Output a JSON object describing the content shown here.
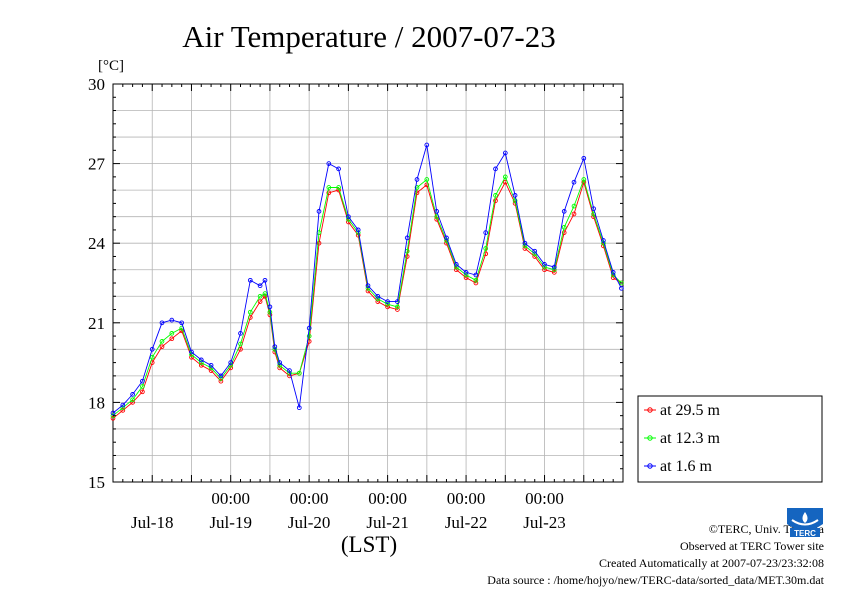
{
  "chart_data": {
    "type": "line",
    "title": "Air Temperature / 2007-07-23",
    "ylabel": "[°C]",
    "xlabel": "(LST)",
    "ylim": [
      15,
      30
    ],
    "yticks": [
      "30",
      "27",
      "24",
      "21",
      "18",
      "15"
    ],
    "yticks_values": [
      30,
      27,
      24,
      21,
      18,
      15
    ],
    "xtick_time_labels": [
      "00:00",
      "00:00",
      "00:00",
      "00:00",
      "00:00"
    ],
    "xtick_date_labels": [
      "Jul-18",
      "Jul-19",
      "Jul-20",
      "Jul-21",
      "Jul-22",
      "Jul-23"
    ],
    "grid": true,
    "legend_position": "right-lower, outside plot",
    "series": [
      {
        "name": "at 29.5 m",
        "color": "#ff0000",
        "x": [
          "07-17 12:00",
          "07-17 15:00",
          "07-17 18:00",
          "07-17 21:00",
          "07-18 00:00",
          "07-18 03:00",
          "07-18 06:00",
          "07-18 09:00",
          "07-18 12:00",
          "07-18 15:00",
          "07-18 18:00",
          "07-18 21:00",
          "07-19 00:00",
          "07-19 03:00",
          "07-19 06:00",
          "07-19 09:00",
          "07-19 10:30",
          "07-19 12:00",
          "07-19 13:30",
          "07-19 15:00",
          "07-19 18:00",
          "07-19 21:00",
          "07-20 00:00",
          "07-20 03:00",
          "07-20 06:00",
          "07-20 09:00",
          "07-20 12:00",
          "07-20 15:00",
          "07-20 18:00",
          "07-20 21:00",
          "07-21 00:00",
          "07-21 03:00",
          "07-21 06:00",
          "07-21 09:00",
          "07-21 12:00",
          "07-21 15:00",
          "07-21 18:00",
          "07-21 21:00",
          "07-22 00:00",
          "07-22 03:00",
          "07-22 06:00",
          "07-22 09:00",
          "07-22 12:00",
          "07-22 15:00",
          "07-22 18:00",
          "07-22 21:00",
          "07-23 00:00",
          "07-23 03:00",
          "07-23 06:00",
          "07-23 09:00",
          "07-23 12:00",
          "07-23 15:00",
          "07-23 18:00",
          "07-23 21:00",
          "07-23 23:30"
        ],
        "y": [
          17.4,
          17.7,
          18.0,
          18.4,
          19.5,
          20.1,
          20.4,
          20.7,
          19.7,
          19.4,
          19.2,
          18.8,
          19.3,
          20.0,
          21.2,
          21.8,
          22.0,
          21.3,
          19.9,
          19.3,
          19.0,
          19.1,
          20.3,
          24.0,
          25.9,
          26.0,
          24.8,
          24.3,
          22.2,
          21.8,
          21.6,
          21.5,
          23.5,
          25.9,
          26.2,
          24.9,
          24.0,
          23.0,
          22.7,
          22.5,
          23.6,
          25.6,
          26.3,
          25.5,
          23.8,
          23.5,
          23.0,
          22.9,
          24.4,
          25.1,
          26.3,
          25.0,
          23.9,
          22.7,
          22.5
        ]
      },
      {
        "name": "at 12.3 m",
        "color": "#00ff00",
        "x": [
          "07-17 12:00",
          "07-17 15:00",
          "07-17 18:00",
          "07-17 21:00",
          "07-18 00:00",
          "07-18 03:00",
          "07-18 06:00",
          "07-18 09:00",
          "07-18 12:00",
          "07-18 15:00",
          "07-18 18:00",
          "07-18 21:00",
          "07-19 00:00",
          "07-19 03:00",
          "07-19 06:00",
          "07-19 09:00",
          "07-19 10:30",
          "07-19 12:00",
          "07-19 13:30",
          "07-19 15:00",
          "07-19 18:00",
          "07-19 21:00",
          "07-20 00:00",
          "07-20 03:00",
          "07-20 06:00",
          "07-20 09:00",
          "07-20 12:00",
          "07-20 15:00",
          "07-20 18:00",
          "07-20 21:00",
          "07-21 00:00",
          "07-21 03:00",
          "07-21 06:00",
          "07-21 09:00",
          "07-21 12:00",
          "07-21 15:00",
          "07-21 18:00",
          "07-21 21:00",
          "07-22 00:00",
          "07-22 03:00",
          "07-22 06:00",
          "07-22 09:00",
          "07-22 12:00",
          "07-22 15:00",
          "07-22 18:00",
          "07-22 21:00",
          "07-23 00:00",
          "07-23 03:00",
          "07-23 06:00",
          "07-23 09:00",
          "07-23 12:00",
          "07-23 15:00",
          "07-23 18:00",
          "07-23 21:00",
          "07-23 23:30"
        ],
        "y": [
          17.5,
          17.8,
          18.1,
          18.6,
          19.7,
          20.3,
          20.6,
          20.8,
          19.8,
          19.5,
          19.3,
          18.9,
          19.4,
          20.2,
          21.4,
          22.0,
          22.1,
          21.4,
          20.0,
          19.4,
          19.1,
          19.1,
          20.5,
          24.4,
          26.1,
          26.1,
          24.9,
          24.4,
          22.3,
          21.9,
          21.7,
          21.6,
          23.7,
          26.1,
          26.4,
          25.0,
          24.1,
          23.1,
          22.8,
          22.6,
          23.8,
          25.8,
          26.5,
          25.6,
          23.9,
          23.6,
          23.1,
          23.0,
          24.6,
          25.4,
          26.4,
          25.1,
          24.0,
          22.8,
          22.5
        ]
      },
      {
        "name": "at 1.6 m",
        "color": "#0000ff",
        "x": [
          "07-17 12:00",
          "07-17 15:00",
          "07-17 18:00",
          "07-17 21:00",
          "07-18 00:00",
          "07-18 03:00",
          "07-18 06:00",
          "07-18 09:00",
          "07-18 12:00",
          "07-18 15:00",
          "07-18 18:00",
          "07-18 21:00",
          "07-19 00:00",
          "07-19 03:00",
          "07-19 06:00",
          "07-19 09:00",
          "07-19 10:30",
          "07-19 12:00",
          "07-19 13:30",
          "07-19 15:00",
          "07-19 18:00",
          "07-19 21:00",
          "07-20 00:00",
          "07-20 03:00",
          "07-20 06:00",
          "07-20 09:00",
          "07-20 12:00",
          "07-20 15:00",
          "07-20 18:00",
          "07-20 21:00",
          "07-21 00:00",
          "07-21 03:00",
          "07-21 06:00",
          "07-21 09:00",
          "07-21 12:00",
          "07-21 15:00",
          "07-21 18:00",
          "07-21 21:00",
          "07-22 00:00",
          "07-22 03:00",
          "07-22 06:00",
          "07-22 09:00",
          "07-22 12:00",
          "07-22 15:00",
          "07-22 18:00",
          "07-22 21:00",
          "07-23 00:00",
          "07-23 03:00",
          "07-23 06:00",
          "07-23 09:00",
          "07-23 12:00",
          "07-23 15:00",
          "07-23 18:00",
          "07-23 21:00",
          "07-23 23:30"
        ],
        "y": [
          17.6,
          17.9,
          18.3,
          18.8,
          20.0,
          21.0,
          21.1,
          21.0,
          19.9,
          19.6,
          19.4,
          19.0,
          19.5,
          20.6,
          22.6,
          22.4,
          22.6,
          21.6,
          20.1,
          19.5,
          19.2,
          17.8,
          20.8,
          25.2,
          27.0,
          26.8,
          25.0,
          24.5,
          22.4,
          22.0,
          21.8,
          21.8,
          24.2,
          26.4,
          27.7,
          25.2,
          24.2,
          23.2,
          22.9,
          22.8,
          24.4,
          26.8,
          27.4,
          25.8,
          24.0,
          23.7,
          23.2,
          23.1,
          25.2,
          26.3,
          27.2,
          25.3,
          24.1,
          22.9,
          22.3
        ]
      }
    ]
  },
  "footer": {
    "copyright": "©TERC, Univ. Tsukuba",
    "site": "Observed at TERC Tower site",
    "created": "Created Automatically at 2007-07-23/23:32:08",
    "source": "Data source : /home/hojyo/new/TERC-data/sorted_data/MET.30m.dat"
  },
  "logo": {
    "text": "TERC",
    "color": "#1565c0"
  }
}
